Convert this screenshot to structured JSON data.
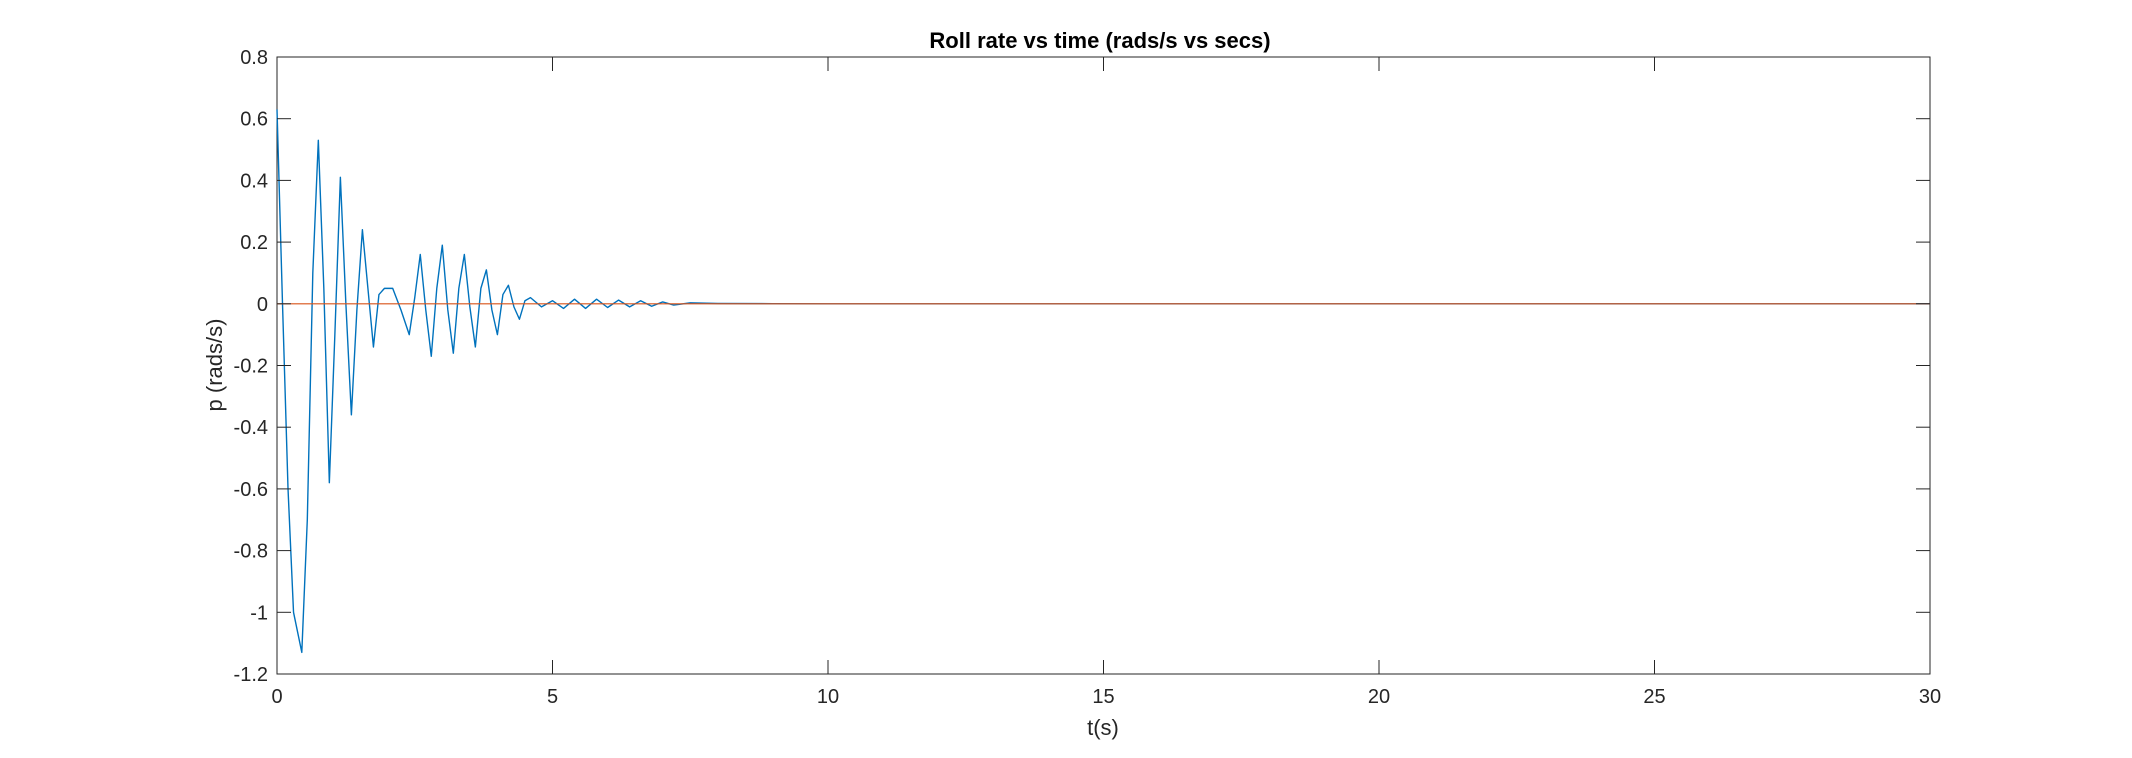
{
  "chart_data": {
    "type": "line",
    "title": "Roll rate vs time (rads/s vs secs)",
    "xlabel": "t(s)",
    "ylabel": "p (rads/s)",
    "xlim": [
      0,
      30
    ],
    "ylim": [
      -1.2,
      0.8
    ],
    "xticks": [
      0,
      5,
      10,
      15,
      20,
      25,
      30
    ],
    "yticks": [
      -1.2,
      -1,
      -0.8,
      -0.6,
      -0.4,
      -0.2,
      0,
      0.2,
      0.4,
      0.6,
      0.8
    ],
    "grid": false,
    "legend": "none",
    "series": [
      {
        "color": "#0072BD",
        "style": "line",
        "x": [
          0,
          0.1,
          0.2,
          0.3,
          0.45,
          0.55,
          0.65,
          0.75,
          0.85,
          0.95,
          1.05,
          1.15,
          1.25,
          1.35,
          1.45,
          1.55,
          1.65,
          1.75,
          1.85,
          1.95,
          2.1,
          2.25,
          2.4,
          2.5,
          2.6,
          2.7,
          2.8,
          2.9,
          3.0,
          3.1,
          3.2,
          3.3,
          3.4,
          3.5,
          3.6,
          3.7,
          3.8,
          3.9,
          4.0,
          4.1,
          4.2,
          4.3,
          4.4,
          4.5,
          4.6,
          4.8,
          5.0,
          5.2,
          5.4,
          5.6,
          5.8,
          6.0,
          6.2,
          6.4,
          6.6,
          6.8,
          7.0,
          7.2,
          7.5,
          8.0,
          9.0,
          10.0,
          10.5,
          30
        ],
        "y": [
          0.63,
          0.0,
          -0.6,
          -1.0,
          -1.13,
          -0.7,
          0.1,
          0.53,
          0.05,
          -0.58,
          -0.1,
          0.41,
          0.0,
          -0.36,
          -0.02,
          0.24,
          0.05,
          -0.14,
          0.03,
          0.05,
          0.05,
          -0.02,
          -0.1,
          0.02,
          0.16,
          -0.02,
          -0.17,
          0.05,
          0.19,
          -0.02,
          -0.16,
          0.05,
          0.16,
          -0.01,
          -0.14,
          0.05,
          0.11,
          -0.02,
          -0.1,
          0.03,
          0.06,
          -0.01,
          -0.05,
          0.01,
          0.02,
          -0.01,
          0.01,
          -0.015,
          0.015,
          -0.015,
          0.015,
          -0.012,
          0.012,
          -0.01,
          0.01,
          -0.008,
          0.006,
          -0.004,
          0.003,
          0.001,
          0.0005,
          0.0,
          0.0,
          0.0
        ]
      },
      {
        "color": "#D95319",
        "style": "line",
        "x": [
          0,
          30
        ],
        "y": [
          0,
          0
        ]
      }
    ]
  }
}
